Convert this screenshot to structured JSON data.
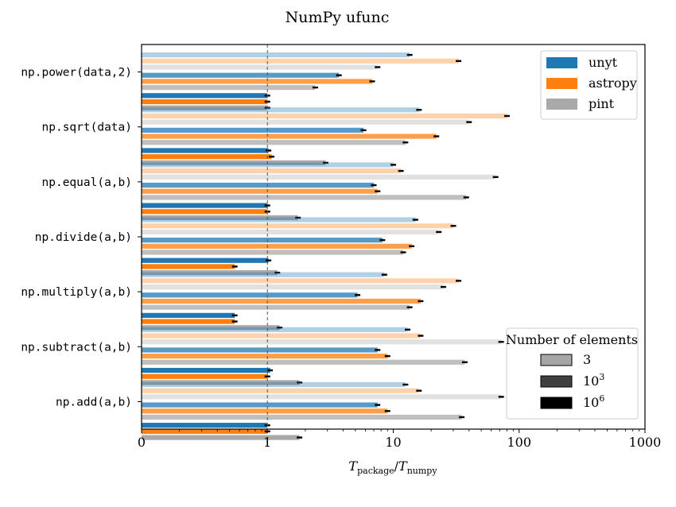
{
  "chart_data": {
    "type": "bar",
    "orientation": "horizontal",
    "title": "NumPy ufunc",
    "xlabel": {
      "main_left": "T",
      "sub_left": "package",
      "slash": "/",
      "main_right": "T",
      "sub_right": "numpy"
    },
    "x_scale": "log",
    "xlim": [
      0.1,
      1000
    ],
    "x_ticks": [
      "0",
      "1",
      "10",
      "100",
      "1000"
    ],
    "reference_line": 1,
    "categories": [
      "np.power(data,2)",
      "np.sqrt(data)",
      "np.equal(a,b)",
      "np.divide(a,b)",
      "np.multiply(a,b)",
      "np.subtract(a,b)",
      "np.add(a,b)"
    ],
    "packages": [
      {
        "name": "unyt",
        "color": "#1f77b4"
      },
      {
        "name": "astropy",
        "color": "#ff7f0e"
      },
      {
        "name": "pint",
        "color": "#a9a9a9"
      }
    ],
    "sizes": [
      {
        "label": "3",
        "alpha": 0.35
      },
      {
        "label": "10",
        "exponent": "3",
        "alpha": 0.75
      },
      {
        "label": "10",
        "exponent": "6",
        "alpha": 1.0
      }
    ],
    "size_legend_title": "Number of elements",
    "values": {
      "np.power(data,2)": {
        "3": [
          13.5,
          33,
          7.5
        ],
        "1000": [
          3.7,
          6.8,
          2.4
        ],
        "1000000": [
          1.0,
          1.0,
          1.0
        ]
      },
      "np.sqrt(data)": {
        "3": [
          16,
          80,
          40
        ],
        "1000": [
          5.8,
          22,
          12.5
        ],
        "1000000": [
          1.02,
          1.08,
          2.9
        ]
      },
      "np.equal(a,b)": {
        "3": [
          10,
          11.5,
          65
        ],
        "1000": [
          7,
          7.5,
          38
        ],
        "1000000": [
          1.0,
          1.0,
          1.75
        ]
      },
      "np.divide(a,b)": {
        "3": [
          15,
          30,
          23
        ],
        "1000": [
          8.2,
          14,
          12
        ],
        "1000000": [
          1.02,
          0.55,
          1.2
        ]
      },
      "np.multiply(a,b)": {
        "3": [
          8.5,
          33,
          25
        ],
        "1000": [
          5.2,
          16.5,
          13.5
        ],
        "1000000": [
          0.55,
          0.55,
          1.25
        ]
      },
      "np.subtract(a,b)": {
        "3": [
          13,
          16.5,
          72
        ],
        "1000": [
          7.5,
          9,
          37
        ],
        "1000000": [
          1.05,
          1.0,
          1.8
        ]
      },
      "np.add(a,b)": {
        "3": [
          12.5,
          16,
          72
        ],
        "1000": [
          7.5,
          9,
          35
        ],
        "1000000": [
          1.0,
          1.0,
          1.8
        ]
      }
    },
    "grid": false,
    "legend_placement": "top-right",
    "size_legend_placement": "bottom-right"
  }
}
